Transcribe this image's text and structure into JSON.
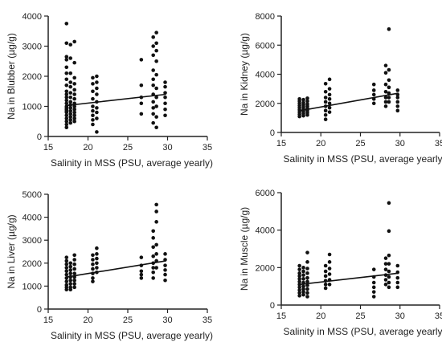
{
  "chart_data": [
    {
      "type": "scatter",
      "xlabel": "Salinity in MSS (PSU, average yearly)",
      "ylabel": "Na in Blubber (µg/g)",
      "xlim": [
        15,
        35
      ],
      "ylim": [
        0,
        4000
      ],
      "xticks": [
        15,
        20,
        25,
        30,
        35
      ],
      "yticks": [
        0,
        1000,
        2000,
        3000,
        4000
      ],
      "trendline": {
        "x": [
          17.4,
          29.8
        ],
        "y": [
          1030,
          1400
        ]
      },
      "series": [
        {
          "x": 17.3,
          "y": [
            3750,
            3100,
            2650,
            2550,
            2300,
            2100,
            1900,
            1700,
            1500,
            1400,
            1300,
            1200,
            1100,
            1000,
            950,
            900,
            850,
            800,
            700,
            600,
            500,
            400,
            300
          ]
        },
        {
          "x": 17.8,
          "y": [
            3050,
            2600,
            2100,
            1800,
            1650,
            1450,
            1300,
            1150,
            1050,
            950,
            850,
            750,
            650,
            550,
            450
          ]
        },
        {
          "x": 18.3,
          "y": [
            3150,
            2450,
            1950,
            1750,
            1550,
            1400,
            1250,
            1100,
            1000,
            900,
            800,
            700,
            600,
            500
          ]
        },
        {
          "x": 20.6,
          "y": [
            1950,
            1750,
            1500,
            1250,
            1000,
            850,
            700,
            550,
            400
          ]
        },
        {
          "x": 21.1,
          "y": [
            2000,
            1800,
            1600,
            1400,
            1150,
            950,
            800,
            600,
            150
          ]
        },
        {
          "x": 26.7,
          "y": [
            2550,
            1700,
            1300,
            1100,
            750
          ]
        },
        {
          "x": 28.2,
          "y": [
            3300,
            3000,
            2700,
            2200,
            1900,
            1700,
            1400,
            1150,
            950,
            750,
            450
          ]
        },
        {
          "x": 28.6,
          "y": [
            3450,
            3100,
            2850,
            2500,
            2050,
            1600,
            1300,
            1000,
            650,
            300
          ]
        },
        {
          "x": 29.7,
          "y": [
            1800,
            1650,
            1450,
            1300,
            1100,
            900,
            700
          ]
        }
      ]
    },
    {
      "type": "scatter",
      "xlabel": "Salinity in MSS (PSU, average yearly)",
      "ylabel": "Na in Kidney (µg/g)",
      "xlim": [
        15,
        35
      ],
      "ylim": [
        0,
        8000
      ],
      "xticks": [
        15,
        20,
        25,
        30,
        35
      ],
      "yticks": [
        0,
        2000,
        4000,
        6000,
        8000
      ],
      "trendline": {
        "x": [
          17.4,
          29.8
        ],
        "y": [
          1500,
          2700
        ]
      },
      "series": [
        {
          "x": 17.3,
          "y": [
            2300,
            2150,
            2000,
            1850,
            1700,
            1550,
            1400,
            1250,
            1100
          ]
        },
        {
          "x": 17.8,
          "y": [
            2250,
            2050,
            1900,
            1750,
            1600,
            1450,
            1300,
            1150
          ]
        },
        {
          "x": 18.3,
          "y": [
            2350,
            2150,
            1950,
            1800,
            1650,
            1500,
            1350,
            1200
          ]
        },
        {
          "x": 20.6,
          "y": [
            3350,
            2800,
            2400,
            2100,
            1800,
            1500,
            1200,
            900
          ]
        },
        {
          "x": 21.1,
          "y": [
            3650,
            3000,
            2600,
            2300,
            2000,
            1700,
            1400
          ]
        },
        {
          "x": 26.7,
          "y": [
            3300,
            2900,
            2600,
            2300,
            2000
          ]
        },
        {
          "x": 28.2,
          "y": [
            4600,
            4100,
            3300,
            2800,
            2400,
            2100,
            1800
          ]
        },
        {
          "x": 28.6,
          "y": [
            7100,
            4300,
            3600,
            3100,
            2700,
            2400,
            2100
          ]
        },
        {
          "x": 29.7,
          "y": [
            2900,
            2600,
            2400,
            2100,
            1800,
            1500
          ]
        }
      ]
    },
    {
      "type": "scatter",
      "xlabel": "Salinity in MSS (PSU, average yearly)",
      "ylabel": "Na in Liver (µg/g)",
      "xlim": [
        15,
        35
      ],
      "ylim": [
        0,
        5000
      ],
      "xticks": [
        15,
        20,
        25,
        30,
        35
      ],
      "yticks": [
        0,
        1000,
        2000,
        3000,
        4000,
        5000
      ],
      "trendline": {
        "x": [
          17.4,
          29.8
        ],
        "y": [
          1400,
          2100
        ]
      },
      "series": [
        {
          "x": 17.3,
          "y": [
            2250,
            2100,
            1950,
            1800,
            1650,
            1500,
            1350,
            1200,
            1050,
            950,
            850
          ]
        },
        {
          "x": 17.8,
          "y": [
            2000,
            1850,
            1700,
            1550,
            1400,
            1250,
            1100,
            950,
            850
          ]
        },
        {
          "x": 18.3,
          "y": [
            2350,
            2150,
            1950,
            1750,
            1550,
            1400,
            1250,
            1100,
            950
          ]
        },
        {
          "x": 20.6,
          "y": [
            2350,
            2150,
            1950,
            1750,
            1550,
            1350,
            1200
          ]
        },
        {
          "x": 21.1,
          "y": [
            2650,
            2400,
            2200,
            2000,
            1800,
            1600
          ]
        },
        {
          "x": 26.7,
          "y": [
            2250,
            1900,
            1650,
            1500,
            1350
          ]
        },
        {
          "x": 28.2,
          "y": [
            3400,
            3100,
            2700,
            2300,
            2000,
            1800,
            1600,
            1350
          ]
        },
        {
          "x": 28.6,
          "y": [
            4550,
            4250,
            3800,
            2800,
            2400,
            2100,
            1800
          ]
        },
        {
          "x": 29.7,
          "y": [
            2400,
            2150,
            1900,
            1700,
            1500,
            1250
          ]
        }
      ]
    },
    {
      "type": "scatter",
      "xlabel": "Salinity in MSS (PSU, average yearly)",
      "ylabel": "Na in Muscle (µg/g)",
      "xlim": [
        15,
        35
      ],
      "ylim": [
        0,
        6000
      ],
      "xticks": [
        15,
        20,
        25,
        30,
        35
      ],
      "yticks": [
        0,
        2000,
        4000,
        6000
      ],
      "trendline": {
        "x": [
          17.4,
          29.8
        ],
        "y": [
          1100,
          1700
        ]
      },
      "series": [
        {
          "x": 17.3,
          "y": [
            2100,
            1900,
            1700,
            1550,
            1400,
            1250,
            1100,
            950,
            800,
            650,
            500
          ]
        },
        {
          "x": 17.8,
          "y": [
            2000,
            1800,
            1600,
            1400,
            1200,
            1000,
            850,
            700,
            550
          ]
        },
        {
          "x": 18.3,
          "y": [
            2800,
            2300,
            1950,
            1700,
            1450,
            1250,
            1050,
            850,
            650,
            450
          ]
        },
        {
          "x": 20.6,
          "y": [
            2100,
            1800,
            1550,
            1300,
            1100,
            900
          ]
        },
        {
          "x": 21.1,
          "y": [
            2700,
            2300,
            1950,
            1650,
            1350,
            1100
          ]
        },
        {
          "x": 26.7,
          "y": [
            1900,
            1500,
            1200,
            950,
            700,
            450
          ]
        },
        {
          "x": 28.2,
          "y": [
            2500,
            2200,
            1900,
            1600,
            1350,
            1100
          ]
        },
        {
          "x": 28.6,
          "y": [
            5450,
            3950,
            2650,
            2200,
            1800,
            1500,
            1200,
            950
          ]
        },
        {
          "x": 29.7,
          "y": [
            2100,
            1750,
            1450,
            1200,
            950
          ]
        }
      ]
    }
  ]
}
